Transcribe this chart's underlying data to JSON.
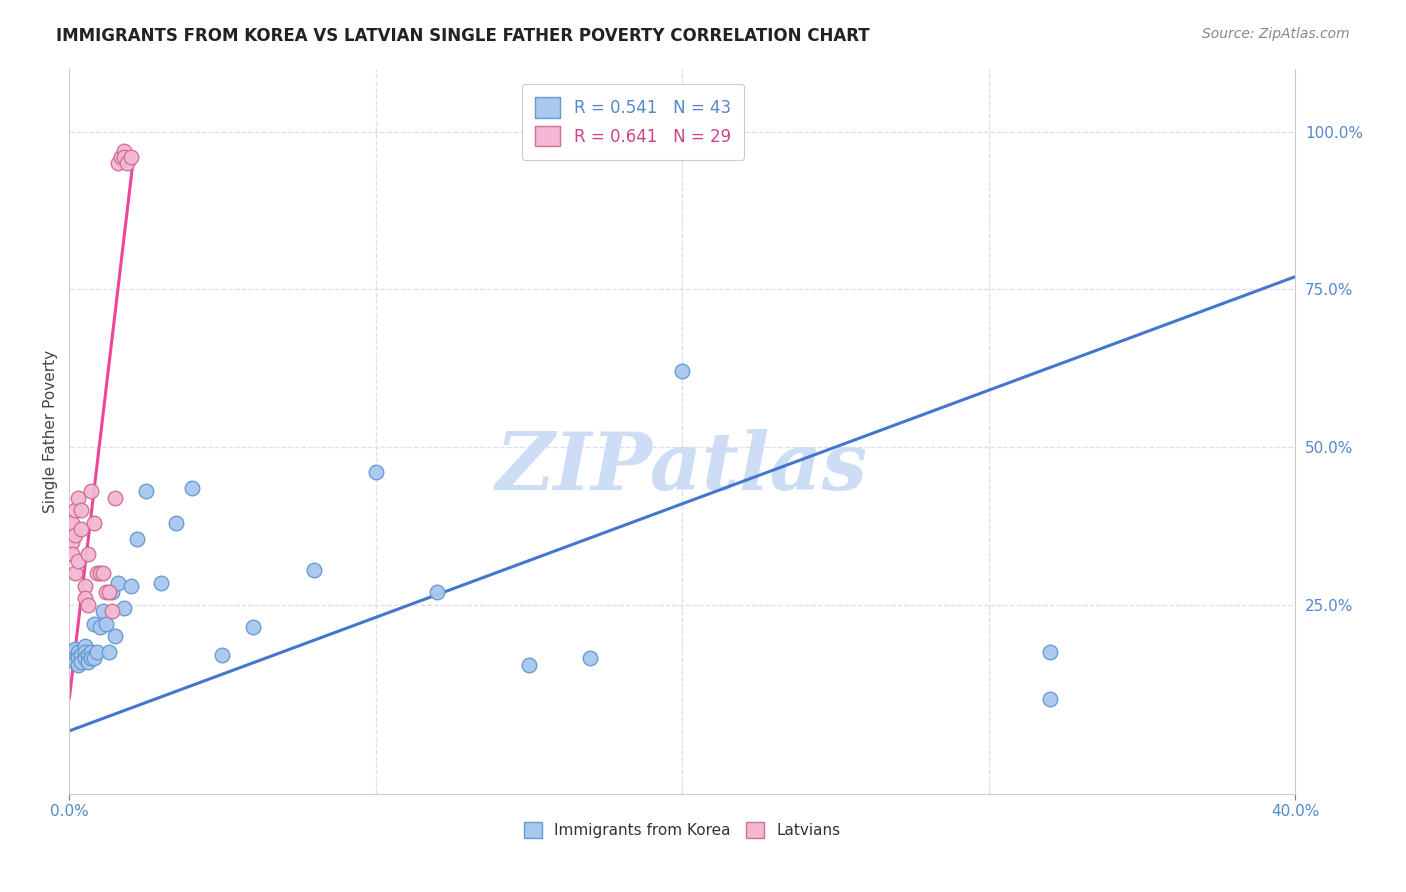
{
  "title": "IMMIGRANTS FROM KOREA VS LATVIAN SINGLE FATHER POVERTY CORRELATION CHART",
  "source": "Source: ZipAtlas.com",
  "ylabel": "Single Father Poverty",
  "ytick_labels": [
    "100.0%",
    "75.0%",
    "50.0%",
    "25.0%"
  ],
  "ytick_values": [
    1.0,
    0.75,
    0.5,
    0.25
  ],
  "xlim": [
    0.0,
    0.4
  ],
  "ylim": [
    -0.05,
    1.1
  ],
  "legend_r1": "R = 0.541   N = 43",
  "legend_r2": "R = 0.641   N = 29",
  "legend_label1": "Immigrants from Korea",
  "legend_label2": "Latvians",
  "korea_color": "#a8c8f0",
  "latvia_color": "#f4b8d4",
  "korea_edge": "#6699cc",
  "latvia_edge": "#d07090",
  "trendline_korea_color": "#4477cc",
  "trendline_latvia_color": "#ee4499",
  "trendline_latvia_dash": "dashed",
  "watermark_text": "ZIPatlas",
  "watermark_color": "#ccddf5",
  "title_fontsize": 12,
  "source_fontsize": 10,
  "korea_x": [
    0.001,
    0.001,
    0.002,
    0.002,
    0.003,
    0.003,
    0.003,
    0.004,
    0.004,
    0.005,
    0.005,
    0.005,
    0.006,
    0.006,
    0.007,
    0.007,
    0.008,
    0.008,
    0.009,
    0.01,
    0.011,
    0.012,
    0.013,
    0.014,
    0.015,
    0.016,
    0.018,
    0.02,
    0.022,
    0.025,
    0.03,
    0.035,
    0.04,
    0.05,
    0.06,
    0.08,
    0.1,
    0.12,
    0.15,
    0.17,
    0.2,
    0.32,
    0.32
  ],
  "korea_y": [
    0.175,
    0.165,
    0.18,
    0.16,
    0.175,
    0.165,
    0.155,
    0.17,
    0.16,
    0.185,
    0.175,
    0.165,
    0.17,
    0.16,
    0.175,
    0.165,
    0.22,
    0.165,
    0.175,
    0.215,
    0.24,
    0.22,
    0.175,
    0.27,
    0.2,
    0.285,
    0.245,
    0.28,
    0.355,
    0.43,
    0.285,
    0.38,
    0.435,
    0.17,
    0.215,
    0.305,
    0.46,
    0.27,
    0.155,
    0.165,
    0.62,
    0.1,
    0.175
  ],
  "latvia_x": [
    0.001,
    0.001,
    0.001,
    0.002,
    0.002,
    0.002,
    0.003,
    0.003,
    0.004,
    0.004,
    0.005,
    0.005,
    0.006,
    0.006,
    0.007,
    0.008,
    0.009,
    0.01,
    0.011,
    0.012,
    0.013,
    0.014,
    0.015,
    0.016,
    0.017,
    0.018,
    0.018,
    0.019,
    0.02
  ],
  "latvia_y": [
    0.38,
    0.35,
    0.33,
    0.4,
    0.36,
    0.3,
    0.42,
    0.32,
    0.4,
    0.37,
    0.28,
    0.26,
    0.33,
    0.25,
    0.43,
    0.38,
    0.3,
    0.3,
    0.3,
    0.27,
    0.27,
    0.24,
    0.42,
    0.95,
    0.96,
    0.97,
    0.96,
    0.95,
    0.96
  ],
  "korea_trend_x0": 0.0,
  "korea_trend_x1": 0.4,
  "korea_trend_y0": 0.05,
  "korea_trend_y1": 0.77,
  "latvia_trend_x0": 0.0,
  "latvia_trend_x1": 0.021,
  "latvia_trend_y0": 0.1,
  "latvia_trend_y1": 0.96
}
